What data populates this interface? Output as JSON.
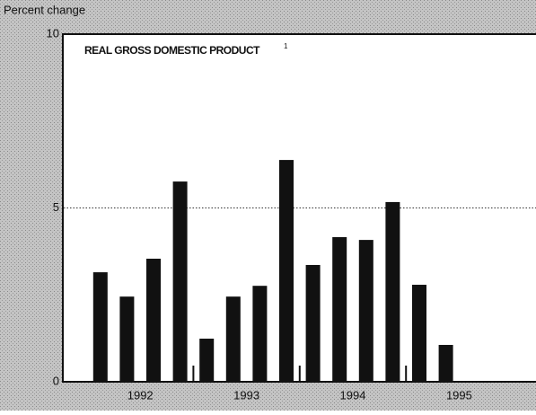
{
  "chart_data": {
    "type": "bar",
    "title": "REAL GROSS DOMESTIC PRODUCT",
    "title_note": "1",
    "y_label": "Percent change",
    "categories": [
      null,
      null,
      null,
      null,
      null,
      null,
      null,
      null,
      null,
      null,
      null,
      null,
      null,
      null,
      null,
      null
    ],
    "groups": [
      "1992",
      "1993",
      "1994",
      "1995"
    ],
    "values": [
      3.15,
      2.45,
      3.54,
      5.76,
      1.24,
      2.45,
      2.76,
      6.38,
      3.36,
      4.16,
      4.08,
      5.17,
      2.79,
      1.06,
      null,
      null
    ],
    "color": "#111111",
    "ylim": [
      0,
      10
    ],
    "yticks": [
      0,
      5,
      10
    ],
    "grid": true
  }
}
